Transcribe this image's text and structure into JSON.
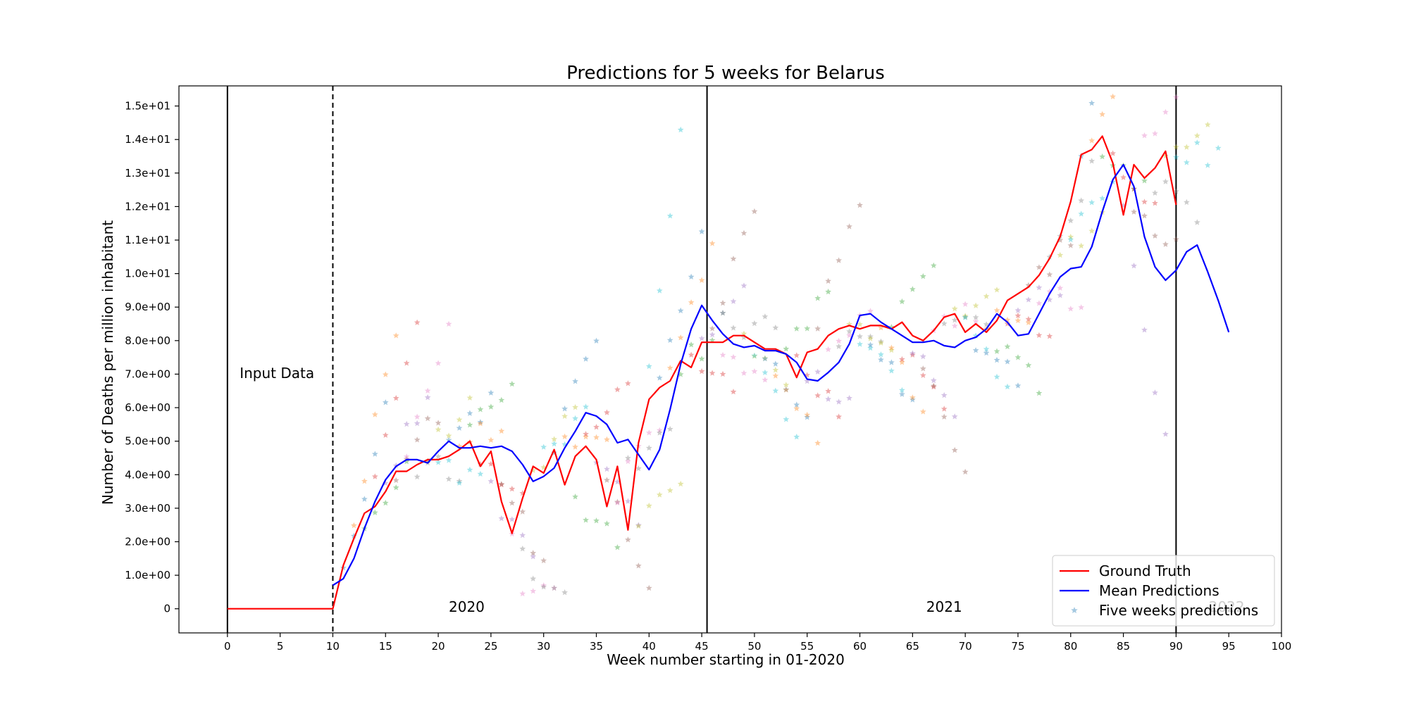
{
  "chart_data": {
    "type": "line",
    "title": "Predictions for 5 weeks for Belarus",
    "xlabel": "Week number starting in 01-2020",
    "ylabel": "Number of Deaths per million inhabitant",
    "xlim": [
      -4.6,
      100
    ],
    "ylim": [
      -0.72,
      15.6
    ],
    "x_ticks": [
      0,
      5,
      10,
      15,
      20,
      25,
      30,
      35,
      40,
      45,
      50,
      55,
      60,
      65,
      70,
      75,
      80,
      85,
      90,
      95,
      100
    ],
    "y_ticks": [
      0,
      1,
      2,
      3,
      4,
      5,
      6,
      7,
      8,
      9,
      10,
      11,
      12,
      13,
      14,
      15
    ],
    "y_tick_labels": [
      "0",
      "1.0e+00",
      "2.0e+00",
      "3.0e+00",
      "4.0e+00",
      "5.0e+00",
      "6.0e+00",
      "7.0e+00",
      "8.0e+00",
      "9.0e+00",
      "1.0e+01",
      "1.1e+01",
      "1.2e+01",
      "1.3e+01",
      "1.4e+01",
      "1.5e+01"
    ],
    "x_tick_labels": [
      "0",
      "5",
      "10",
      "15",
      "20",
      "25",
      "30",
      "35",
      "40",
      "45",
      "50",
      "55",
      "60",
      "65",
      "70",
      "75",
      "80",
      "85",
      "90",
      "95",
      "100"
    ],
    "vertical_lines": [
      {
        "x": 0,
        "style": "solid"
      },
      {
        "x": 10,
        "style": "dashed"
      },
      {
        "x": 45.5,
        "style": "solid"
      },
      {
        "x": 90,
        "style": "solid"
      }
    ],
    "annotations": [
      {
        "text": "Input Data",
        "x": 4.7,
        "y": 7.0
      },
      {
        "text": "2020",
        "x": 22.7,
        "y": 0.0
      },
      {
        "text": "2021",
        "x": 68.0,
        "y": 0.0
      },
      {
        "text": "2022",
        "x": 94.8,
        "y": 0.0,
        "faded": true
      }
    ],
    "legend": {
      "placement": "bottom-right",
      "entries": [
        "Ground Truth",
        "Mean Predictions",
        "Five weeks predictions"
      ]
    },
    "series": [
      {
        "name": "Ground Truth",
        "color": "#ff0000",
        "x_start": 0,
        "values": [
          0,
          0,
          0,
          0,
          0,
          0,
          0,
          0,
          0,
          0,
          0,
          1.3,
          2.1,
          2.85,
          3.05,
          3.5,
          4.1,
          4.1,
          4.3,
          4.45,
          4.45,
          4.55,
          4.75,
          5.0,
          4.25,
          4.7,
          3.2,
          2.25,
          3.3,
          4.25,
          4.05,
          4.75,
          3.7,
          4.55,
          4.85,
          4.45,
          3.05,
          4.25,
          2.35,
          4.95,
          6.25,
          6.6,
          6.8,
          7.4,
          7.2,
          7.95,
          7.95,
          7.95,
          8.15,
          8.15,
          7.95,
          7.75,
          7.75,
          7.6,
          6.9,
          7.65,
          7.75,
          8.15,
          8.35,
          8.45,
          8.35,
          8.45,
          8.45,
          8.35,
          8.55,
          8.15,
          8.0,
          8.3,
          8.7,
          8.8,
          8.25,
          8.5,
          8.25,
          8.6,
          9.2,
          9.4,
          9.6,
          9.95,
          10.45,
          11.1,
          12.15,
          13.55,
          13.7,
          14.1,
          13.3,
          11.75,
          13.25,
          12.85,
          13.15,
          13.65,
          12.05
        ]
      },
      {
        "name": "Mean Predictions",
        "color": "#0000ff",
        "x_start": 10,
        "values": [
          0.7,
          0.9,
          1.5,
          2.4,
          3.2,
          3.85,
          4.25,
          4.45,
          4.45,
          4.35,
          4.7,
          5.0,
          4.8,
          4.8,
          4.85,
          4.8,
          4.85,
          4.7,
          4.3,
          3.8,
          3.95,
          4.2,
          4.8,
          5.3,
          5.85,
          5.75,
          5.5,
          4.95,
          5.05,
          4.6,
          4.15,
          4.75,
          5.95,
          7.3,
          8.35,
          9.05,
          8.6,
          8.2,
          7.9,
          7.8,
          7.85,
          7.7,
          7.7,
          7.6,
          7.35,
          6.85,
          6.8,
          7.05,
          7.35,
          7.9,
          8.75,
          8.8,
          8.55,
          8.35,
          8.15,
          7.95,
          7.95,
          8.0,
          7.85,
          7.8,
          8.0,
          8.1,
          8.35,
          8.8,
          8.55,
          8.15,
          8.2,
          8.8,
          9.4,
          9.9,
          10.15,
          10.2,
          10.8,
          11.85,
          12.8,
          13.25,
          12.6,
          11.1,
          10.2,
          9.8,
          10.1,
          10.65,
          10.85,
          10.05,
          9.2,
          8.25
        ]
      }
    ],
    "five_week_predictions": {
      "name": "Five weeks predictions",
      "marker": "star",
      "note": "Each weekly forecast start produces five predicted points (one per horizon week); colors cycle through the tab10 palette with transparency.",
      "start_weeks_from": 10,
      "start_weeks_to": 89
    }
  }
}
